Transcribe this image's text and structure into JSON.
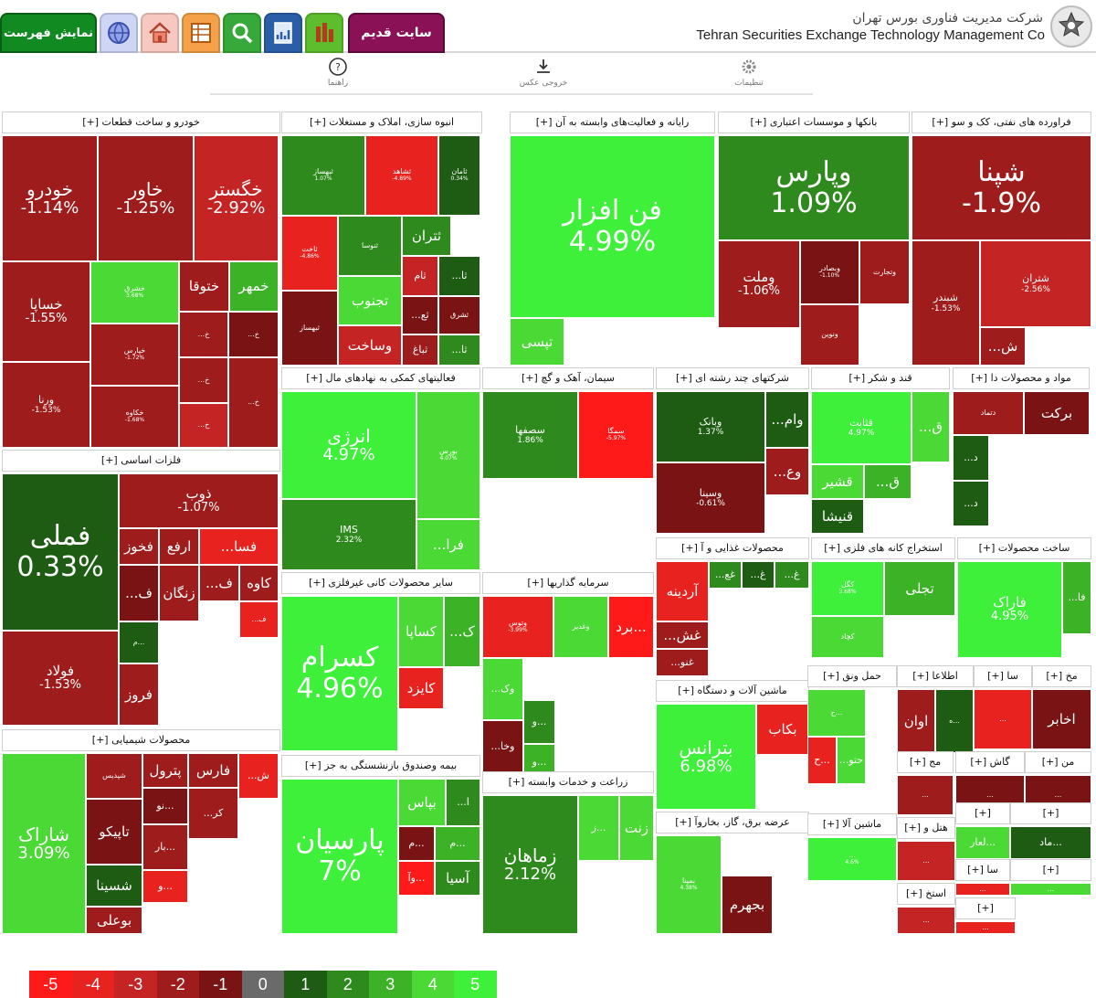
{
  "header": {
    "show_index_label": "نمایش فهرست",
    "old_site_label": "سایت قدیم",
    "company_name_fa": "شرکت مدیریت فناوری بورس تهران",
    "company_name_en": "Tehran Securities Exchange Technology Management Co",
    "nav_icons": [
      "globe-icon",
      "home-icon",
      "table-icon",
      "search-icon",
      "chart-report-icon",
      "bar-chart-icon"
    ]
  },
  "toolbar": {
    "help_label": "راهنما",
    "export_label": "خروجی عکس",
    "settings_label": "تنظیمات"
  },
  "colors": {
    "m5": "#ff1a1a",
    "m4": "#e8231f",
    "m3": "#c42424",
    "m2": "#9e1c1c",
    "m1": "#7a1414",
    "z": "#6a6a6a",
    "p1": "#1d5c12",
    "p2": "#2e8a1c",
    "p3": "#3cb226",
    "p4": "#4bd935",
    "p5": "#3ef03a"
  },
  "legend": [
    {
      "label": "-5",
      "tone": "m5"
    },
    {
      "label": "-4",
      "tone": "m4"
    },
    {
      "label": "-3",
      "tone": "m3"
    },
    {
      "label": "-2",
      "tone": "m2"
    },
    {
      "label": "-1",
      "tone": "m1"
    },
    {
      "label": "0",
      "tone": "z"
    },
    {
      "label": "1",
      "tone": "p1"
    },
    {
      "label": "2",
      "tone": "p2"
    },
    {
      "label": "3",
      "tone": "p3"
    },
    {
      "label": "4",
      "tone": "p4"
    },
    {
      "label": "5",
      "tone": "p5"
    }
  ],
  "sections": [
    {
      "label": "خودرو و ساخت قطعات [+]",
      "tiles": [
        {
          "name": "خودرو",
          "value": "-1.14%",
          "tone": "m2"
        },
        {
          "name": "خاور",
          "value": "-1.25%",
          "tone": "m2"
        },
        {
          "name": "خگستر",
          "value": "-2.92%",
          "tone": "m3"
        },
        {
          "name": "خساپا",
          "value": "-1.55%",
          "tone": "m2"
        },
        {
          "name": "خشرق",
          "value": "3.68%",
          "tone": "p4"
        },
        {
          "name": "ختوقا",
          "value": "",
          "tone": "m2"
        },
        {
          "name": "خمهر",
          "value": "",
          "tone": "p3"
        },
        {
          "name": "خپارس",
          "value": "-1.72%",
          "tone": "m2"
        },
        {
          "name": "ورنا",
          "value": "-1.53%",
          "tone": "m2"
        },
        {
          "name": "خکاوه",
          "value": "-1.68%",
          "tone": "m2"
        },
        {
          "name": "خ...",
          "value": "",
          "tone": "m2"
        },
        {
          "name": "خ...",
          "value": "",
          "tone": "m1"
        },
        {
          "name": "خ...",
          "value": "",
          "tone": "m2"
        },
        {
          "name": "خ...",
          "value": "",
          "tone": "m3"
        },
        {
          "name": "خ...",
          "value": "",
          "tone": "m2"
        }
      ]
    },
    {
      "label": "انبوه سازی، املاک و مستغلات [+]",
      "tiles": [
        {
          "name": "ثبهساز",
          "value": "1.07%",
          "tone": "p2"
        },
        {
          "name": "ثشاهد",
          "value": "-4.89%",
          "tone": "m4"
        },
        {
          "name": "ثامان",
          "value": "0.34%",
          "tone": "p1"
        },
        {
          "name": "ثاخت",
          "value": "-4.86%",
          "tone": "m4"
        },
        {
          "name": "ثنوسا",
          "value": "",
          "tone": "p2"
        },
        {
          "name": "ثبهساز",
          "value": "",
          "tone": "m1"
        },
        {
          "name": "ثتران",
          "value": "",
          "tone": "p2"
        },
        {
          "name": "تجنوب",
          "value": "",
          "tone": "p4"
        },
        {
          "name": "ثام",
          "value": "",
          "tone": "m3"
        },
        {
          "name": "ثا...",
          "value": "",
          "tone": "p1"
        },
        {
          "name": "ثع...",
          "value": "",
          "tone": "m1"
        },
        {
          "name": "ثشرق",
          "value": "",
          "tone": "m1"
        },
        {
          "name": "وساخت",
          "value": "",
          "tone": "m3"
        },
        {
          "name": "ثباغ",
          "value": "",
          "tone": "m2"
        },
        {
          "name": "ثا...",
          "value": "",
          "tone": "p2"
        }
      ]
    },
    {
      "label": "رایانه و فعالیت‌های وابسته به آن [+]",
      "tiles": [
        {
          "name": "فن افزار",
          "value": "4.99%",
          "tone": "p5"
        },
        {
          "name": "تپسی",
          "value": "",
          "tone": "p4"
        }
      ]
    },
    {
      "label": "بانکها و موسسات اعتباری [+]",
      "tiles": [
        {
          "name": "وپارس",
          "value": "1.09%",
          "tone": "p2"
        },
        {
          "name": "وملت",
          "value": "-1.06%",
          "tone": "m2"
        },
        {
          "name": "وبصادر",
          "value": "-1.10%",
          "tone": "m1"
        },
        {
          "name": "وتجارت",
          "value": "",
          "tone": "m2"
        },
        {
          "name": "ونوین",
          "value": "",
          "tone": "m2"
        }
      ]
    },
    {
      "label": "فراورده های نفتی، کک و سو [+]",
      "tiles": [
        {
          "name": "شپنا",
          "value": "-1.9%",
          "tone": "m2"
        },
        {
          "name": "شبندر",
          "value": "-1.53%",
          "tone": "m2"
        },
        {
          "name": "شتران",
          "value": "-2.56%",
          "tone": "m3"
        },
        {
          "name": "ش...",
          "value": "",
          "tone": "m2"
        }
      ]
    },
    {
      "label": "فعالیتهای کمکی به نهادهای مال [+]",
      "tiles": [
        {
          "name": "انرژی",
          "value": "4.97%",
          "tone": "p5"
        },
        {
          "name": "بورس",
          "value": "4.07%",
          "tone": "p4"
        },
        {
          "name": "IMS",
          "value": "2.32%",
          "tone": "p2"
        },
        {
          "name": "فرا...",
          "value": "",
          "tone": "p4"
        }
      ]
    },
    {
      "label": "سیمان، آهک و گچ [+]",
      "tiles": [
        {
          "name": "سصفها",
          "value": "1.86%",
          "tone": "p2"
        },
        {
          "name": "سمگا",
          "value": "-5.97%",
          "tone": "m5"
        }
      ]
    },
    {
      "label": "شرکتهای چند رشته ای [+]",
      "tiles": [
        {
          "name": "وبانک",
          "value": "1.37%",
          "tone": "p1"
        },
        {
          "name": "وام...",
          "value": "",
          "tone": "p1"
        },
        {
          "name": "وسینا",
          "value": "-0.61%",
          "tone": "m1"
        },
        {
          "name": "وع...",
          "value": "",
          "tone": "m2"
        }
      ]
    },
    {
      "label": "قند و شکر [+]",
      "tiles": [
        {
          "name": "قثابت",
          "value": "4.97%",
          "tone": "p5"
        },
        {
          "name": "قشیر",
          "value": "",
          "tone": "p4"
        },
        {
          "name": "ق...",
          "value": "",
          "tone": "p3"
        },
        {
          "name": "قنیشا",
          "value": "",
          "tone": "p1"
        },
        {
          "name": "ق...",
          "value": "",
          "tone": "p4"
        }
      ]
    },
    {
      "label": "مواد و محصولات دا [+]",
      "tiles": [
        {
          "name": "دتماد",
          "value": "",
          "tone": "m2"
        },
        {
          "name": "برکت",
          "value": "",
          "tone": "m1"
        },
        {
          "name": "د...",
          "value": "",
          "tone": "p1"
        },
        {
          "name": "د...",
          "value": "",
          "tone": "p1"
        }
      ]
    },
    {
      "label": "فلزات اساسی [+]",
      "tiles": [
        {
          "name": "فملی",
          "value": "0.33%",
          "tone": "p1"
        },
        {
          "name": "ذوب",
          "value": "-1.07%",
          "tone": "m2"
        },
        {
          "name": "فخوز",
          "value": "",
          "tone": "m2"
        },
        {
          "name": "ارفع",
          "value": "",
          "tone": "m2"
        },
        {
          "name": "فسا...",
          "value": "",
          "tone": "m4"
        },
        {
          "name": "ف...",
          "value": "",
          "tone": "m1"
        },
        {
          "name": "زنگان",
          "value": "",
          "tone": "m2"
        },
        {
          "name": "ف...",
          "value": "",
          "tone": "m2"
        },
        {
          "name": "کاوه",
          "value": "",
          "tone": "m2"
        },
        {
          "name": "فولاد",
          "value": "-1.53%",
          "tone": "m2"
        },
        {
          "name": "...م",
          "value": "",
          "tone": "p1"
        },
        {
          "name": "فروز",
          "value": "",
          "tone": "m2"
        },
        {
          "name": "ف...",
          "value": "",
          "tone": "m4"
        }
      ]
    },
    {
      "label": "سایر محصولات کانی غیرفلزی [+]",
      "tiles": [
        {
          "name": "کسرام",
          "value": "4.96%",
          "tone": "p5"
        },
        {
          "name": "کساپا",
          "value": "",
          "tone": "p4"
        },
        {
          "name": "ک...",
          "value": "",
          "tone": "p3"
        },
        {
          "name": "کایزد",
          "value": "",
          "tone": "m4"
        }
      ]
    },
    {
      "label": "سرمایه گذاریها [+]",
      "tiles": [
        {
          "name": "وتوس",
          "value": "-3.99%",
          "tone": "m4"
        },
        {
          "name": "وغدیر",
          "value": "",
          "tone": "p4"
        },
        {
          "name": "...برد",
          "value": "",
          "tone": "m5"
        },
        {
          "name": "وک...",
          "value": "",
          "tone": "p4"
        },
        {
          "name": "وخا...",
          "value": "",
          "tone": "m1"
        },
        {
          "name": "...و",
          "value": "",
          "tone": "p2"
        },
        {
          "name": "...و",
          "value": "",
          "tone": "p3"
        }
      ]
    },
    {
      "label": "محصولات غذایی و آ [+]",
      "tiles": [
        {
          "name": "آردینه",
          "value": "",
          "tone": "m4"
        },
        {
          "name": "غع...",
          "value": "",
          "tone": "p2"
        },
        {
          "name": "غ...",
          "value": "",
          "tone": "p1"
        },
        {
          "name": "غ...",
          "value": "",
          "tone": "p2"
        },
        {
          "name": "غش...",
          "value": "",
          "tone": "m2"
        },
        {
          "name": "غنو...",
          "value": "",
          "tone": "m2"
        }
      ]
    },
    {
      "label": "استخراج کانه های فلزی [+]",
      "tiles": [
        {
          "name": "کگل",
          "value": "3.68%",
          "tone": "p5"
        },
        {
          "name": "تجلی",
          "value": "",
          "tone": "p3"
        },
        {
          "name": "کچاد",
          "value": "",
          "tone": "p4"
        }
      ]
    },
    {
      "label": "ساخت محصولات [+]",
      "tiles": [
        {
          "name": "فاراک",
          "value": "4.95%",
          "tone": "p5"
        },
        {
          "name": "فا...",
          "value": "",
          "tone": "p3"
        }
      ]
    },
    {
      "label": "بیمه وصندوق بازنشستگی به جز [+]",
      "tiles": [
        {
          "name": "پارسیان",
          "value": "7%",
          "tone": "p5"
        },
        {
          "name": "بپاس",
          "value": "",
          "tone": "p4"
        },
        {
          "name": "ا...",
          "value": "",
          "tone": "p2"
        },
        {
          "name": "...م",
          "value": "",
          "tone": "m1"
        },
        {
          "name": "...م",
          "value": "",
          "tone": "p3"
        },
        {
          "name": "...وآ",
          "value": "",
          "tone": "m5"
        },
        {
          "name": "آسیا",
          "value": "",
          "tone": "p2"
        }
      ]
    },
    {
      "label": "زراعت و خدمات وابسته [+]",
      "tiles": [
        {
          "name": "زماهان",
          "value": "2.12%",
          "tone": "p2"
        },
        {
          "name": "...ز",
          "value": "",
          "tone": "p4"
        },
        {
          "name": "زنت",
          "value": "",
          "tone": "p4"
        }
      ]
    },
    {
      "label": "محصولات شیمیایی [+]",
      "tiles": [
        {
          "name": "شاراک",
          "value": "3.09%",
          "tone": "p4"
        },
        {
          "name": "شپدیس",
          "value": "",
          "tone": "m2"
        },
        {
          "name": "پترول",
          "value": "",
          "tone": "m2"
        },
        {
          "name": "فارس",
          "value": "",
          "tone": "m2"
        },
        {
          "name": "ش...",
          "value": "",
          "tone": "m4"
        },
        {
          "name": "...نو",
          "value": "",
          "tone": "m1"
        },
        {
          "name": "کر...",
          "value": "",
          "tone": "m2"
        },
        {
          "name": "تاپیکو",
          "value": "",
          "tone": "m1"
        },
        {
          "name": "...بار",
          "value": "",
          "tone": "m2"
        },
        {
          "name": "شسینا",
          "value": "",
          "tone": "p1"
        },
        {
          "name": "...و",
          "value": "",
          "tone": "m4"
        },
        {
          "name": "بوعلی",
          "value": "",
          "tone": "m2"
        }
      ]
    },
    {
      "label": "ماشین آلات و دستگاه [+]",
      "tiles": [
        {
          "name": "بترانس",
          "value": "6.98%",
          "tone": "p5"
        },
        {
          "name": "بکاب",
          "value": "",
          "tone": "m4"
        }
      ]
    },
    {
      "label": "عرضه برق، گاز، بخاروآ [+]",
      "tiles": [
        {
          "name": "بمپنا",
          "value": "4.38%",
          "tone": "p4"
        },
        {
          "name": "بجهرم",
          "value": "",
          "tone": "m1"
        }
      ]
    },
    {
      "label": "حمل ونق [+]",
      "tiles": [
        {
          "name": "...ح",
          "value": "",
          "tone": "p4"
        },
        {
          "name": "...ح",
          "value": "",
          "tone": "m4"
        },
        {
          "name": "حتو...",
          "value": "",
          "tone": "p4"
        }
      ]
    },
    {
      "label": "ماشین آلا [+]",
      "tiles": [
        {
          "name": "...",
          "value": "4.6%",
          "tone": "p5"
        }
      ]
    },
    {
      "label": "هتل و [+]",
      "tiles": [
        {
          "name": "...",
          "value": "",
          "tone": "m3"
        }
      ]
    },
    {
      "label": "استخ [+]",
      "tiles": [
        {
          "name": "...",
          "value": "",
          "tone": "m3"
        }
      ]
    },
    {
      "label": "اطلاعا [+]",
      "tiles": [
        {
          "name": "اوان",
          "value": "",
          "tone": "m2"
        },
        {
          "name": "...ه",
          "value": "",
          "tone": "p1"
        }
      ]
    },
    {
      "label": "سا [+]",
      "tiles": [
        {
          "name": "...",
          "value": "",
          "tone": "m4"
        }
      ]
    },
    {
      "label": "مخ [+]",
      "tiles": [
        {
          "name": "اخابر",
          "value": "",
          "tone": "m1"
        }
      ]
    },
    {
      "label": "مج [+]",
      "tiles": [
        {
          "name": "...",
          "value": "",
          "tone": "m2"
        }
      ]
    },
    {
      "label": "گاش [+]",
      "tiles": [
        {
          "name": "...",
          "value": "",
          "tone": "m1"
        }
      ]
    },
    {
      "label": "من [+]",
      "tiles": [
        {
          "name": "...",
          "value": "",
          "tone": "m1"
        }
      ]
    },
    {
      "label": "[+]",
      "tiles": [
        {
          "name": "...لعار",
          "value": "",
          "tone": "p4"
        }
      ]
    },
    {
      "label": "[+]",
      "tiles": [
        {
          "name": "...ماد",
          "value": "",
          "tone": "p1"
        }
      ]
    },
    {
      "label": "سا [+]",
      "tiles": [
        {
          "name": "...",
          "value": "",
          "tone": "m4"
        }
      ]
    },
    {
      "label": "[+]",
      "tiles": [
        {
          "name": "...",
          "value": "",
          "tone": "p4"
        }
      ]
    },
    {
      "label": "[+]",
      "tiles": [
        {
          "name": "...",
          "value": "",
          "tone": "m4"
        }
      ]
    },
    {
      "label": "سد [+]",
      "tiles": [
        {
          "name": "...",
          "value": "",
          "tone": "m2"
        }
      ]
    }
  ]
}
